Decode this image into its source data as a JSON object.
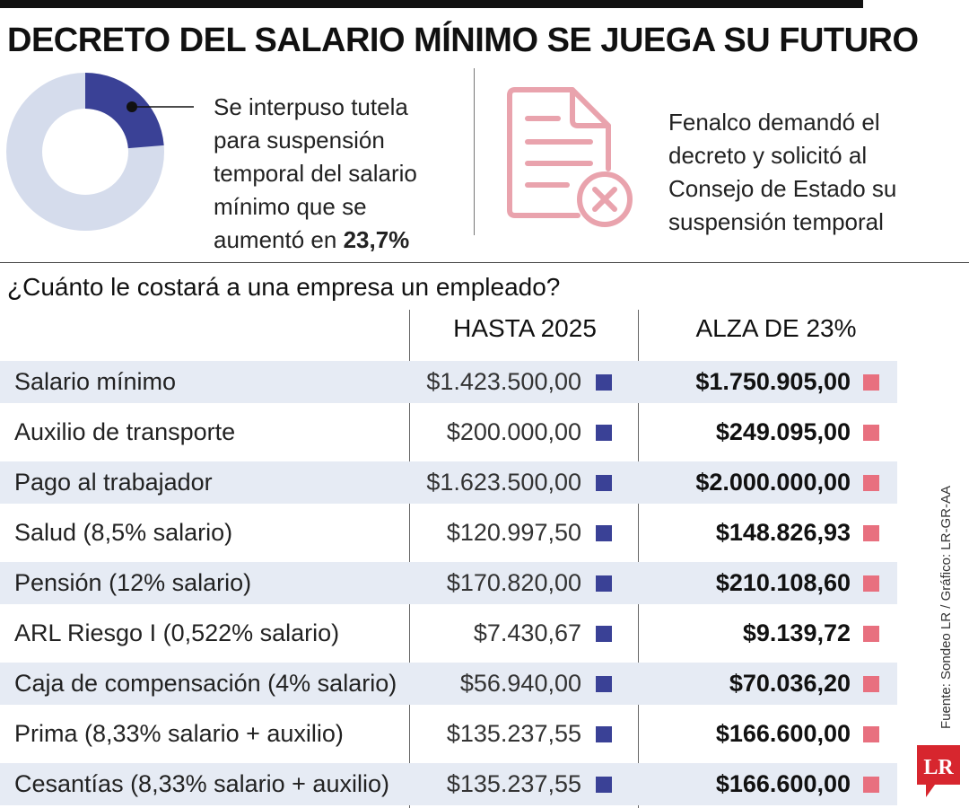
{
  "title": "DECRETO DEL SALARIO MÍNIMO SE JUEGA SU FUTURO",
  "colors": {
    "blue": "#3a4196",
    "pink": "#e8707f",
    "donut_bg": "#d5dcec",
    "row_shade": "#e6ebf4",
    "icon_pink": "#e9a3ad"
  },
  "callout": {
    "text_prefix": "Se interpuso tutela para suspensión temporal del salario mínimo que se aumentó en",
    "highlight": "23,7%"
  },
  "right_callout": {
    "text": "Fenalco demandó el decreto y solicitó al Consejo de Estado su suspensión temporal",
    "icon": "document-cancel-icon"
  },
  "table": {
    "question": "¿Cuánto le costará a una empresa un empleado?",
    "col_2025": "HASTA 2025",
    "col_new": "ALZA DE 23%"
  },
  "chart_data": [
    {
      "type": "pie",
      "values": [
        23.7,
        76.3
      ],
      "highlight_value": "23,7%"
    },
    {
      "type": "table",
      "columns": [
        "",
        "HASTA 2025",
        "ALZA DE 23%"
      ],
      "rows": [
        {
          "label": "Salario mínimo",
          "v2025": "$1.423.500,00",
          "vnew": "$1.750.905,00"
        },
        {
          "label": "Auxilio de transporte",
          "v2025": "$200.000,00",
          "vnew": "$249.095,00"
        },
        {
          "label": "Pago al trabajador",
          "v2025": "$1.623.500,00",
          "vnew": "$2.000.000,00"
        },
        {
          "label": "Salud (8,5% salario)",
          "v2025": "$120.997,50",
          "vnew": "$148.826,93"
        },
        {
          "label": "Pensión (12% salario)",
          "v2025": "$170.820,00",
          "vnew": "$210.108,60"
        },
        {
          "label": "ARL Riesgo I (0,522% salario)",
          "v2025": "$7.430,67",
          "vnew": "$9.139,72"
        },
        {
          "label": "Caja de compensación (4% salario)",
          "v2025": "$56.940,00",
          "vnew": "$70.036,20"
        },
        {
          "label": "Prima (8,33% salario + auxilio)",
          "v2025": "$135.237,55",
          "vnew": "$166.600,00"
        },
        {
          "label": "Cesantías (8,33% salario + auxilio)",
          "v2025": "$135.237,55",
          "vnew": "$166.600,00"
        }
      ]
    }
  ],
  "source": "Fuente: Sondeo LR / Gráfico: LR-GR-AA",
  "logo": "LR"
}
